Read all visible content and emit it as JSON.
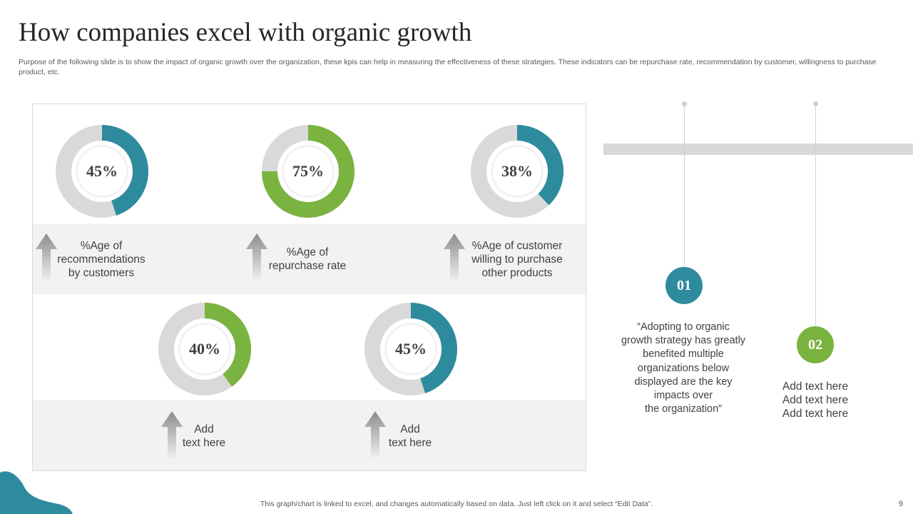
{
  "title": "How companies excel with organic growth",
  "subtitle": "Purpose of the following slide is to show the impact of organic growth over the organization, these kpis  can help in measuring the effectiveness of these strategies. These indicators can  be repurchase rate, recommendation by customer, willingness to purchase product, etc.",
  "colors": {
    "teal": "#2e8b9e",
    "green": "#7ab340",
    "track": "#d9d9d9",
    "inner_ring": "#f2f2f2"
  },
  "chart_data": {
    "type": "donut",
    "items": [
      {
        "value": 45,
        "label_text": "45%",
        "color": "teal",
        "caption": "%Age of\nrecommendations\nby customers"
      },
      {
        "value": 75,
        "label_text": "75%",
        "color": "green",
        "caption": "%Age of\nrepurchase rate"
      },
      {
        "value": 38,
        "label_text": "38%",
        "color": "teal",
        "caption": "%Age of customer\nwilling to purchase\nother products"
      },
      {
        "value": 40,
        "label_text": "40%",
        "color": "green",
        "caption": "Add\ntext here"
      },
      {
        "value": 45,
        "label_text": "45%",
        "color": "teal",
        "caption": "Add\ntext here"
      }
    ]
  },
  "timeline": {
    "badge1": "01",
    "badge2": "02",
    "quote": "“Adopting to organic\ngrowth strategy has greatly\nbenefited  multiple\norganizations below\ndisplayed are the key\nimpacts over\nthe organization”",
    "add_lines": [
      "Add text here",
      "Add text here",
      "Add text here"
    ]
  },
  "footer": "This graph/chart is linked to excel,  and changes automatically based on data. Just left click on it and select “Edit Data”.",
  "page_number": "9"
}
